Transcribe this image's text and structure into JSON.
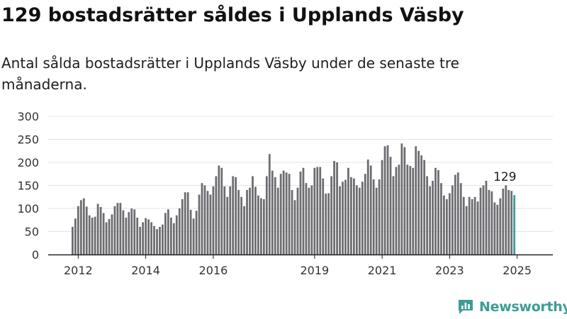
{
  "title": "129 bostadsrätter såldes i Upplands Väsby",
  "subtitle": "Antal sålda bostadsrätter i Upplands Väsby under de senaste tre månaderna.",
  "brand": {
    "name": "Newsworthy",
    "color": "#3d9d95"
  },
  "colors": {
    "bar": "#6e6d72",
    "highlight": "#3a9f96",
    "grid": "#e3e3e3",
    "axis": "#222222"
  },
  "chart_data": {
    "type": "bar",
    "title": "129 bostadsrätter såldes i Upplands Väsby",
    "subtitle": "Antal sålda bostadsrätter i Upplands Väsby under de senaste tre månaderna.",
    "xlabel": "",
    "ylabel": "",
    "ylim": [
      0,
      300
    ],
    "yticks": [
      0,
      50,
      100,
      150,
      200,
      250,
      300
    ],
    "grid": true,
    "start_month": "2011-11",
    "x_ticks": [
      {
        "label": "2012",
        "month": "2012-01"
      },
      {
        "label": "2014",
        "month": "2014-01"
      },
      {
        "label": "2016",
        "month": "2016-01"
      },
      {
        "label": "2019",
        "month": "2019-01"
      },
      {
        "label": "2021",
        "month": "2021-01"
      },
      {
        "label": "2023",
        "month": "2023-01"
      },
      {
        "label": "2025",
        "month": "2025-01"
      }
    ],
    "highlight": {
      "value": 129,
      "label": "129"
    },
    "values": [
      60,
      78,
      105,
      118,
      122,
      104,
      85,
      80,
      82,
      110,
      103,
      90,
      70,
      77,
      87,
      105,
      112,
      112,
      96,
      80,
      92,
      100,
      98,
      80,
      60,
      70,
      79,
      76,
      70,
      62,
      55,
      60,
      65,
      90,
      98,
      80,
      68,
      85,
      100,
      120,
      135,
      135,
      97,
      78,
      95,
      130,
      155,
      150,
      138,
      130,
      148,
      170,
      193,
      188,
      148,
      125,
      148,
      170,
      168,
      140,
      125,
      105,
      140,
      145,
      170,
      147,
      128,
      122,
      120,
      170,
      218,
      182,
      168,
      145,
      175,
      182,
      178,
      175,
      140,
      118,
      145,
      180,
      188,
      155,
      145,
      150,
      188,
      190,
      190,
      165,
      132,
      133,
      170,
      203,
      200,
      148,
      158,
      162,
      188,
      168,
      165,
      150,
      145,
      158,
      175,
      206,
      193,
      163,
      145,
      163,
      205,
      235,
      237,
      212,
      170,
      190,
      195,
      241,
      233,
      195,
      192,
      188,
      235,
      225,
      215,
      205,
      170,
      148,
      160,
      188,
      183,
      155,
      128,
      120,
      133,
      150,
      173,
      178,
      155,
      125,
      105,
      125,
      120,
      125,
      115,
      145,
      150,
      160,
      140,
      137,
      113,
      108,
      122,
      143,
      150,
      140,
      138,
      129
    ]
  }
}
